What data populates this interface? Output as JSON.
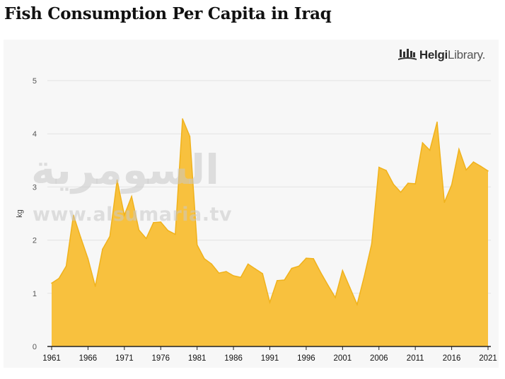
{
  "page": {
    "title": "Fish Consumption Per Capita in Iraq"
  },
  "logo": {
    "brand_bold": "Helgi",
    "brand_light": "Library",
    "brand_dot": "."
  },
  "watermark": {
    "arabic": "السومرية",
    "url": "www.alsumaria.tv"
  },
  "colors": {
    "area_fill": "#f8c13e",
    "area_stroke": "#f0b21c",
    "grid": "#e3e3e3",
    "axis": "#222222"
  },
  "chart_data": {
    "type": "area",
    "title": "Fish Consumption Per Capita in Iraq",
    "xlabel": "",
    "ylabel": "kg",
    "xlim": [
      1961,
      2021
    ],
    "ylim": [
      0,
      5
    ],
    "yticks": [
      0,
      1,
      2,
      3,
      4,
      5
    ],
    "xticks": [
      1961,
      1966,
      1971,
      1976,
      1981,
      1986,
      1991,
      1996,
      2001,
      2006,
      2011,
      2016,
      2021
    ],
    "grid": true,
    "x": [
      1961,
      1962,
      1963,
      1964,
      1965,
      1966,
      1967,
      1968,
      1969,
      1970,
      1971,
      1972,
      1973,
      1974,
      1975,
      1976,
      1977,
      1978,
      1979,
      1980,
      1981,
      1982,
      1983,
      1984,
      1985,
      1986,
      1987,
      1988,
      1989,
      1990,
      1991,
      1992,
      1993,
      1994,
      1995,
      1996,
      1997,
      1998,
      1999,
      2000,
      2001,
      2002,
      2003,
      2004,
      2005,
      2006,
      2007,
      2008,
      2009,
      2010,
      2011,
      2012,
      2013,
      2014,
      2015,
      2016,
      2017,
      2018,
      2019,
      2020,
      2021
    ],
    "values": [
      1.19,
      1.28,
      1.51,
      2.47,
      2.05,
      1.65,
      1.13,
      1.83,
      2.07,
      3.13,
      2.47,
      2.82,
      2.19,
      2.03,
      2.33,
      2.34,
      2.18,
      2.11,
      4.28,
      3.95,
      1.91,
      1.65,
      1.55,
      1.38,
      1.41,
      1.33,
      1.3,
      1.55,
      1.46,
      1.37,
      0.83,
      1.24,
      1.25,
      1.47,
      1.51,
      1.66,
      1.65,
      1.39,
      1.15,
      0.92,
      1.43,
      1.11,
      0.79,
      1.33,
      1.93,
      3.37,
      3.31,
      3.05,
      2.9,
      3.07,
      3.06,
      3.83,
      3.69,
      4.22,
      2.71,
      3.04,
      3.71,
      3.32,
      3.47,
      3.39,
      3.3
    ]
  }
}
